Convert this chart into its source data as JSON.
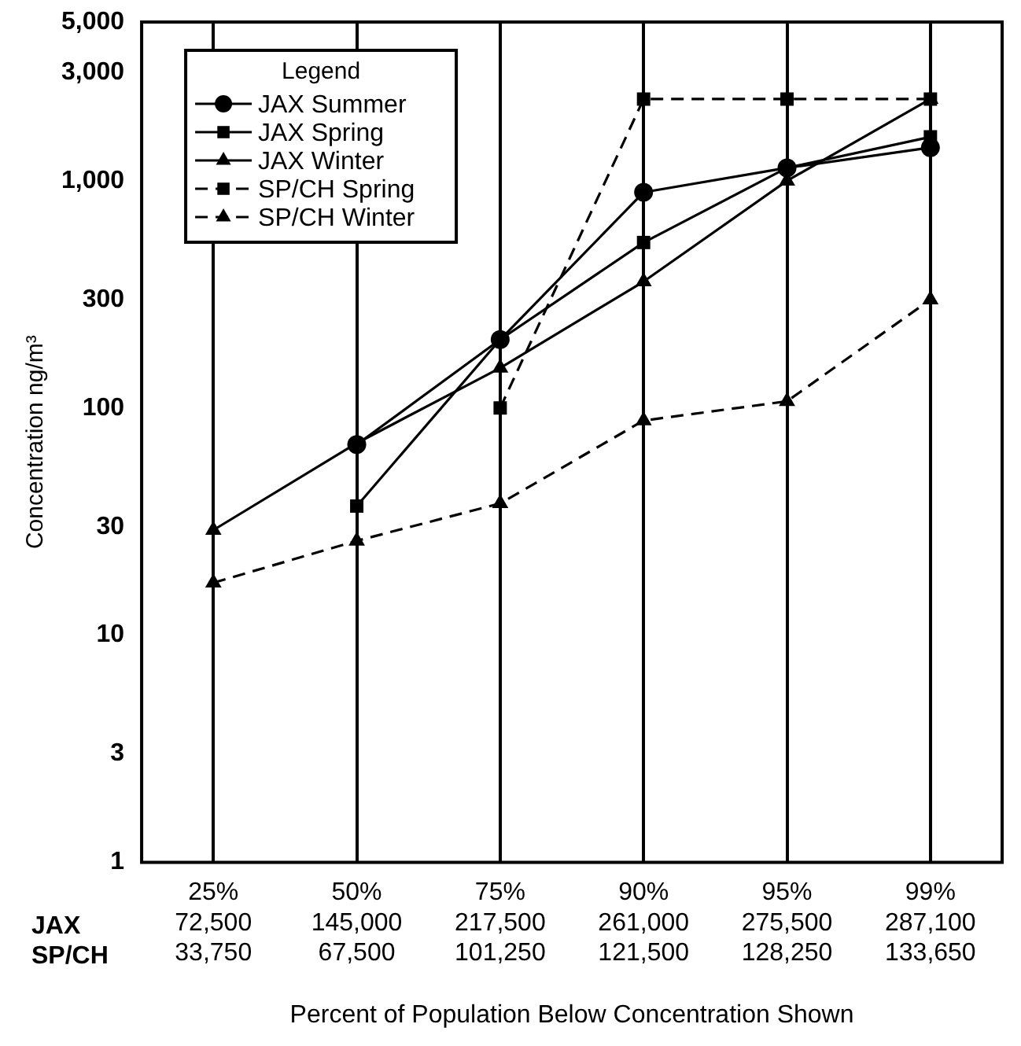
{
  "chart_data": {
    "type": "line",
    "ylabel": "Concentration ng/m³",
    "xlabel": "Percent of Population Below Concentration Shown",
    "legend_title": "Legend",
    "categories": [
      "25%\n72,500\n33,750",
      "50%\n145,000\n67,500",
      "75%\n217,500\n101,250",
      "90%\n261,000\n121,500",
      "95%\n275,500\n128,250",
      "99%\n287,100\n133,650"
    ],
    "annotations": [
      "JAX",
      "SP/CH"
    ],
    "log": "y",
    "ylim": [
      1,
      5000
    ],
    "yticks": [
      1,
      3,
      10,
      30,
      100,
      300,
      {
        "value": 1000,
        "label": "1,000"
      },
      {
        "value": 3000,
        "label": "3,000"
      },
      {
        "value": 5000,
        "label": "5,000"
      }
    ],
    "grid": "x",
    "legend": "top left",
    "series": [
      {
        "name": "JAX Summer",
        "color": "#000000",
        "marker": "circle",
        "line_style": "solid",
        "values": [
          null,
          69,
          200,
          890,
          1140,
          1400
        ]
      },
      {
        "name": "JAX Spring",
        "color": "#000000",
        "marker": "square",
        "line_style": "solid",
        "values": [
          null,
          37,
          200,
          535,
          1140,
          1560
        ]
      },
      {
        "name": "JAX Winter",
        "color": "#000000",
        "marker": "triangle",
        "line_style": "solid",
        "values": [
          29,
          70,
          150,
          360,
          1000,
          2290
        ]
      },
      {
        "name": "SP/CH Spring",
        "color": "#000000",
        "marker": "square",
        "line_style": "dashed",
        "values": [
          null,
          null,
          100,
          2290,
          2290,
          2290
        ]
      },
      {
        "name": "SP/CH Winter",
        "color": "#000000",
        "marker": "triangle",
        "line_style": "dashed",
        "values": [
          17,
          26,
          38,
          88,
          107,
          300
        ]
      }
    ]
  }
}
